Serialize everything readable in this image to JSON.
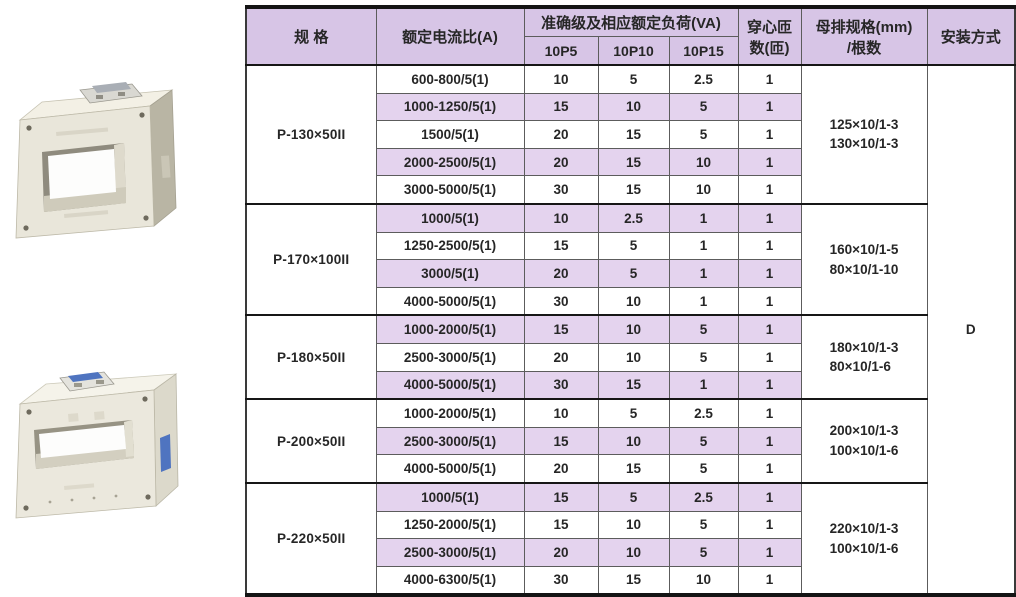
{
  "table": {
    "headers": {
      "spec": "规 格",
      "ratio": "额定电流比(A)",
      "load_group": "准确级及相应额定负荷(VA)",
      "load_cols": [
        "10P5",
        "10P10",
        "10P15"
      ],
      "turns_line1": "穿心匝",
      "turns_line2": "数(匝)",
      "busbar_line1": "母排规格(mm)",
      "busbar_line2": "/根数",
      "install": "安装方式"
    },
    "install_value": "D",
    "groups": [
      {
        "spec": "P-130×50II",
        "busbar": [
          "125×10/1-3",
          "130×10/1-3"
        ],
        "rows": [
          {
            "ratio": "600-800/5(1)",
            "p5": "10",
            "p10": "5",
            "p15": "2.5",
            "turns": "1"
          },
          {
            "ratio": "1000-1250/5(1)",
            "p5": "15",
            "p10": "10",
            "p15": "5",
            "turns": "1"
          },
          {
            "ratio": "1500/5(1)",
            "p5": "20",
            "p10": "15",
            "p15": "5",
            "turns": "1"
          },
          {
            "ratio": "2000-2500/5(1)",
            "p5": "20",
            "p10": "15",
            "p15": "10",
            "turns": "1"
          },
          {
            "ratio": "3000-5000/5(1)",
            "p5": "30",
            "p10": "15",
            "p15": "10",
            "turns": "1"
          }
        ]
      },
      {
        "spec": "P-170×100II",
        "busbar": [
          "160×10/1-5",
          "80×10/1-10"
        ],
        "rows": [
          {
            "ratio": "1000/5(1)",
            "p5": "10",
            "p10": "2.5",
            "p15": "1",
            "turns": "1"
          },
          {
            "ratio": "1250-2500/5(1)",
            "p5": "15",
            "p10": "5",
            "p15": "1",
            "turns": "1"
          },
          {
            "ratio": "3000/5(1)",
            "p5": "20",
            "p10": "5",
            "p15": "1",
            "turns": "1"
          },
          {
            "ratio": "4000-5000/5(1)",
            "p5": "30",
            "p10": "10",
            "p15": "1",
            "turns": "1"
          }
        ]
      },
      {
        "spec": "P-180×50II",
        "busbar": [
          "180×10/1-3",
          "80×10/1-6"
        ],
        "rows": [
          {
            "ratio": "1000-2000/5(1)",
            "p5": "15",
            "p10": "10",
            "p15": "5",
            "turns": "1"
          },
          {
            "ratio": "2500-3000/5(1)",
            "p5": "20",
            "p10": "10",
            "p15": "5",
            "turns": "1"
          },
          {
            "ratio": "4000-5000/5(1)",
            "p5": "30",
            "p10": "15",
            "p15": "1",
            "turns": "1"
          }
        ]
      },
      {
        "spec": "P-200×50II",
        "busbar": [
          "200×10/1-3",
          "100×10/1-6"
        ],
        "rows": [
          {
            "ratio": "1000-2000/5(1)",
            "p5": "10",
            "p10": "5",
            "p15": "2.5",
            "turns": "1"
          },
          {
            "ratio": "2500-3000/5(1)",
            "p5": "15",
            "p10": "10",
            "p15": "5",
            "turns": "1"
          },
          {
            "ratio": "4000-5000/5(1)",
            "p5": "20",
            "p10": "15",
            "p15": "5",
            "turns": "1"
          }
        ]
      },
      {
        "spec": "P-220×50II",
        "busbar": [
          "220×10/1-3",
          "100×10/1-6"
        ],
        "rows": [
          {
            "ratio": "1000/5(1)",
            "p5": "15",
            "p10": "5",
            "p15": "2.5",
            "turns": "1"
          },
          {
            "ratio": "1250-2000/5(1)",
            "p5": "15",
            "p10": "10",
            "p15": "5",
            "turns": "1"
          },
          {
            "ratio": "2500-3000/5(1)",
            "p5": "20",
            "p10": "10",
            "p15": "5",
            "turns": "1"
          },
          {
            "ratio": "4000-6300/5(1)",
            "p5": "30",
            "p10": "15",
            "p15": "10",
            "turns": "1"
          }
        ]
      }
    ]
  },
  "colors": {
    "header_bg": "#d7c5e6",
    "stripe_bg": "#e4d3ee",
    "border_heavy": "#141414",
    "border_light": "#5c5c5c",
    "text": "#262626",
    "product_body": "#e9e6da",
    "product_side": "#b9b5a4",
    "product_label_blue": "#4f74c0"
  }
}
